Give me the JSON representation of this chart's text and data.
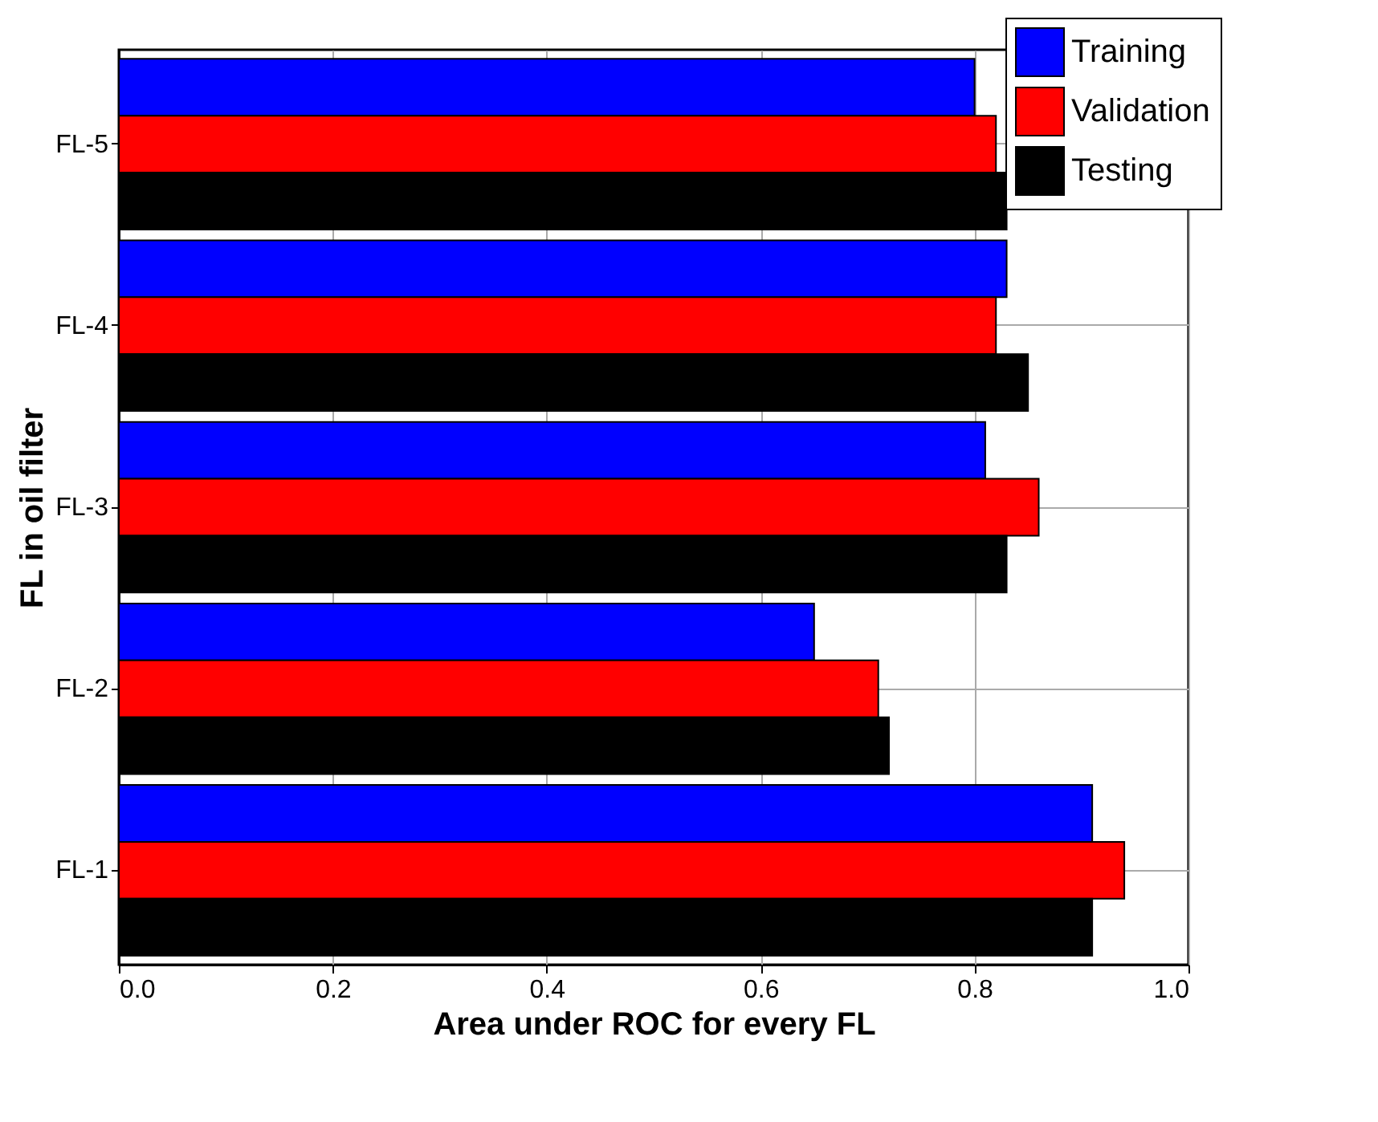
{
  "chart_data": {
    "type": "bar",
    "orientation": "horizontal",
    "xlabel": "Area under ROC for every FL",
    "ylabel": "FL in oil filter",
    "categories": [
      "FL-5",
      "FL-4",
      "FL-3",
      "FL-2",
      "FL-1"
    ],
    "series": [
      {
        "name": "Training",
        "color": "#0000ff",
        "values": [
          0.8,
          0.83,
          0.81,
          0.65,
          0.91
        ]
      },
      {
        "name": "Validation",
        "color": "#ff0000",
        "values": [
          0.82,
          0.82,
          0.86,
          0.71,
          0.94
        ]
      },
      {
        "name": "Testing",
        "color": "#000000",
        "values": [
          0.83,
          0.85,
          0.83,
          0.72,
          0.91
        ]
      }
    ],
    "xlim": [
      0,
      1.0
    ],
    "xticks": [
      {
        "value": 0,
        "label": "0.0"
      },
      {
        "value": 0.2,
        "label": "0.2"
      },
      {
        "value": 0.4,
        "label": "0.4"
      },
      {
        "value": 0.6,
        "label": "0.6"
      },
      {
        "value": 0.8,
        "label": "0.8"
      },
      {
        "value": 1.0,
        "label": "1.0"
      }
    ],
    "grid": true,
    "legend": "top right"
  }
}
